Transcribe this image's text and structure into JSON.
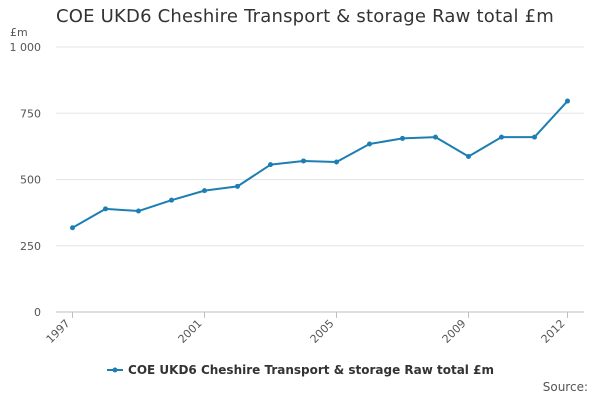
{
  "chart_data": {
    "type": "line",
    "title": "COE UKD6 Cheshire Transport & storage Raw total £m",
    "ylabel": "£m",
    "xlabel": "",
    "ylim": [
      0,
      1000
    ],
    "y_ticks": [
      0,
      250,
      500,
      750,
      1000
    ],
    "y_tick_labels": [
      "0",
      "250",
      "500",
      "750",
      "1 000"
    ],
    "x_ticks": [
      1997,
      2001,
      2005,
      2009,
      2012
    ],
    "x_tick_labels": [
      "1997",
      "2001",
      "2005",
      "2009",
      "2012"
    ],
    "grid": true,
    "legend_position": "bottom",
    "series": [
      {
        "name": "COE UKD6 Cheshire Transport & storage Raw total £m",
        "color": "#1d7eb3",
        "x": [
          1997,
          1998,
          1999,
          2000,
          2001,
          2002,
          2003,
          2004,
          2005,
          2006,
          2007,
          2008,
          2009,
          2010,
          2011,
          2012
        ],
        "values": [
          318,
          389,
          381,
          422,
          458,
          474,
          556,
          570,
          566,
          634,
          655,
          660,
          587,
          660,
          660,
          796
        ]
      }
    ]
  },
  "footer": {
    "source_label": "Source:"
  }
}
